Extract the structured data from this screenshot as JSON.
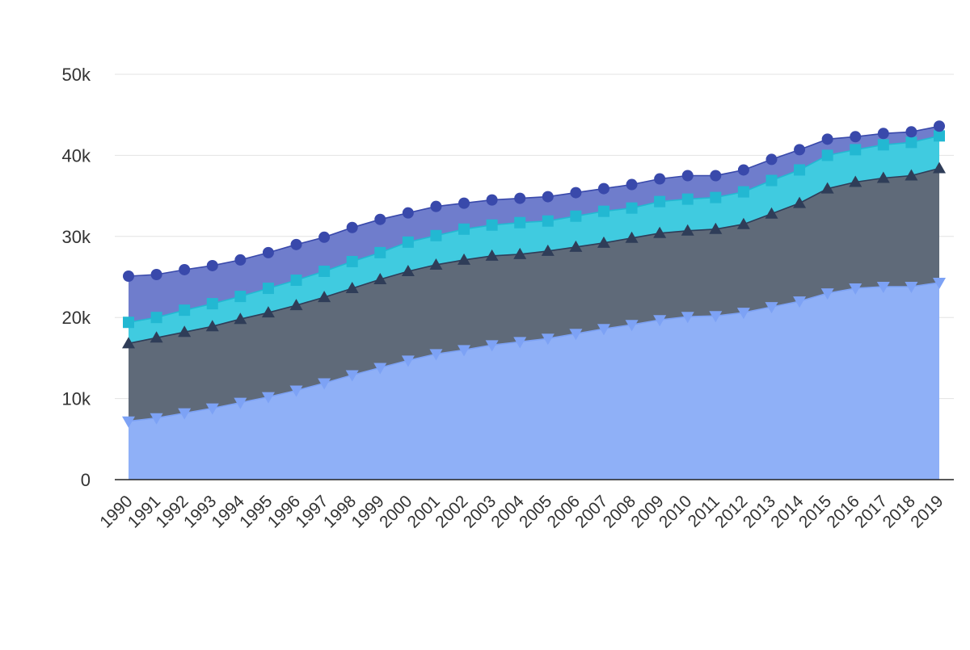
{
  "chart_data": {
    "type": "area",
    "stacked": true,
    "x": [
      "1990",
      "1991",
      "1992",
      "1993",
      "1994",
      "1995",
      "1996",
      "1997",
      "1998",
      "1999",
      "2000",
      "2001",
      "2002",
      "2003",
      "2004",
      "2005",
      "2006",
      "2007",
      "2008",
      "2009",
      "2010",
      "2011",
      "2012",
      "2013",
      "2014",
      "2015",
      "2016",
      "2017",
      "2018",
      "2019"
    ],
    "y_ticks": [
      0,
      10000,
      20000,
      30000,
      40000,
      50000
    ],
    "y_tick_labels": [
      "0",
      "10k",
      "20k",
      "30k",
      "40k",
      "50k"
    ],
    "ylim": [
      0,
      50000
    ],
    "grid": true,
    "legend": "none",
    "series": [
      {
        "marker": "triangle-down",
        "color": "#8fb0f7",
        "line_color": "#7da2f5",
        "values": [
          7200,
          7600,
          8200,
          8800,
          9500,
          10200,
          11000,
          11900,
          12900,
          13800,
          14700,
          15500,
          16000,
          16600,
          17000,
          17400,
          18000,
          18600,
          19100,
          19700,
          20100,
          20200,
          20600,
          21300,
          22000,
          23000,
          23600,
          23800,
          23800,
          24300
        ]
      },
      {
        "marker": "triangle-up",
        "color": "#5f6a79",
        "line_color": "#2f3d58",
        "values": [
          9600,
          9900,
          10000,
          10100,
          10300,
          10400,
          10500,
          10600,
          10700,
          10900,
          11000,
          11000,
          11100,
          11000,
          10800,
          10800,
          10700,
          10600,
          10700,
          10700,
          10600,
          10700,
          10900,
          11500,
          12100,
          12900,
          13100,
          13400,
          13700,
          14100
        ]
      },
      {
        "marker": "square",
        "color": "#40cbe0",
        "line_color": "#22b8d2",
        "values": [
          2600,
          2500,
          2700,
          2800,
          2800,
          3000,
          3100,
          3200,
          3300,
          3300,
          3600,
          3600,
          3800,
          3800,
          3900,
          3700,
          3800,
          3900,
          3700,
          3900,
          3900,
          3900,
          4000,
          4100,
          4100,
          4100,
          4000,
          4100,
          4100,
          4000
        ]
      },
      {
        "marker": "circle",
        "color": "#6f7dcc",
        "line_color": "#3949ab",
        "values": [
          5700,
          5300,
          5000,
          4700,
          4500,
          4400,
          4400,
          4200,
          4200,
          4100,
          3600,
          3600,
          3200,
          3100,
          3000,
          3000,
          2900,
          2800,
          2900,
          2800,
          2900,
          2700,
          2700,
          2600,
          2500,
          2000,
          1600,
          1400,
          1300,
          1200
        ]
      }
    ]
  }
}
